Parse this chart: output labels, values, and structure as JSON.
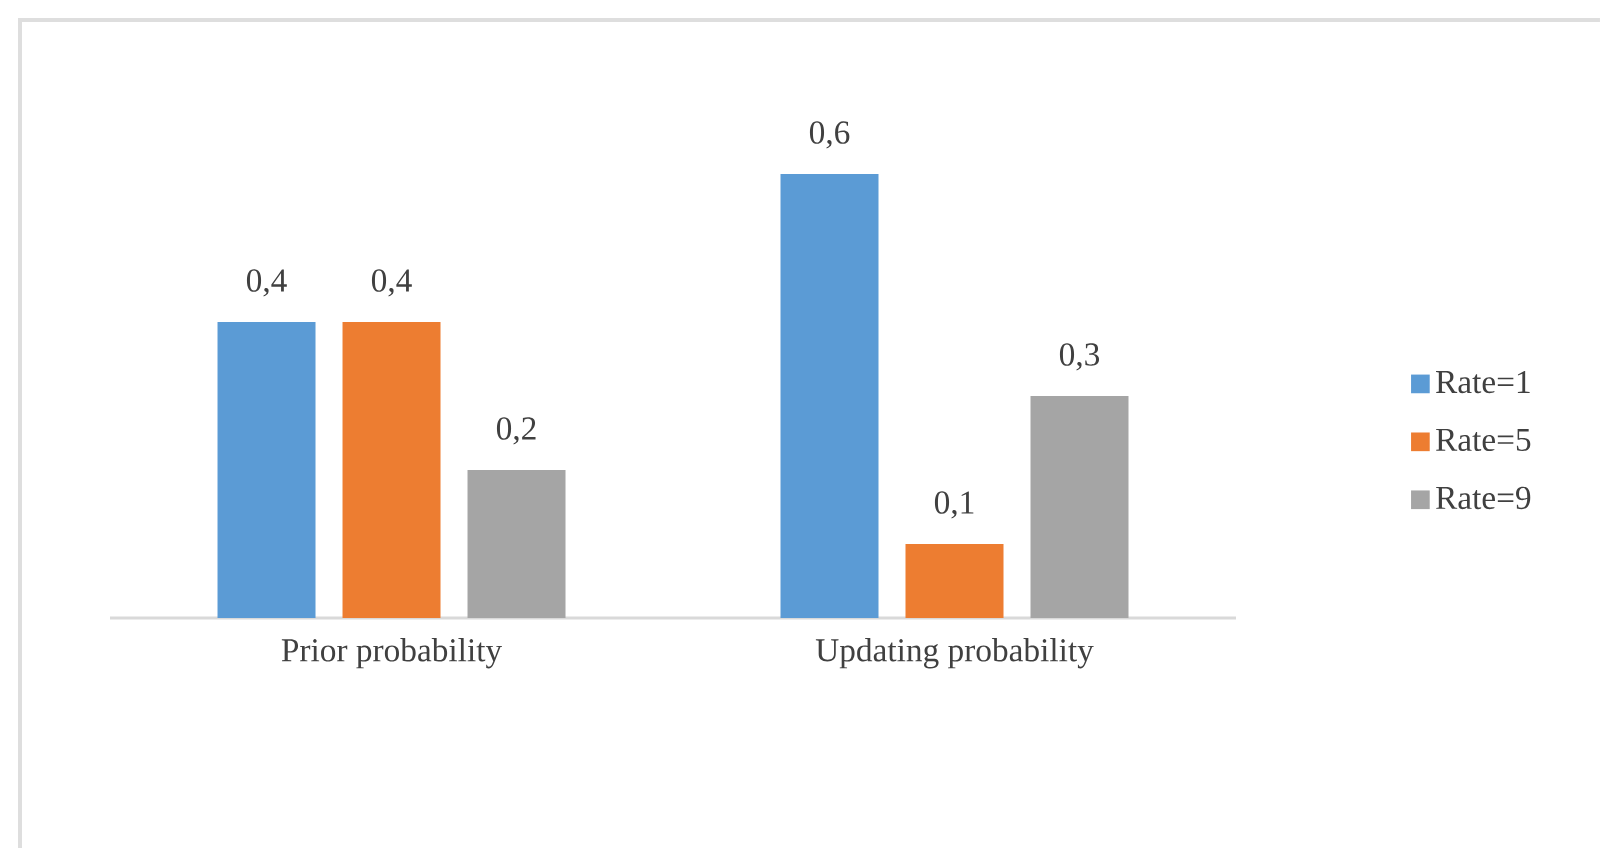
{
  "chart_data": {
    "type": "bar",
    "categories": [
      "Prior probability",
      "Updating probability"
    ],
    "series": [
      {
        "name": "Rate=1",
        "color": "#5b9bd5",
        "values": [
          0.4,
          0.6
        ],
        "value_labels": [
          "0,4",
          "0,6"
        ]
      },
      {
        "name": "Rate=5",
        "color": "#ed7d31",
        "values": [
          0.4,
          0.1
        ],
        "value_labels": [
          "0,4",
          "0,1"
        ]
      },
      {
        "name": "Rate=9",
        "color": "#a5a5a5",
        "values": [
          0.2,
          0.3
        ],
        "value_labels": [
          "0,2",
          "0,3"
        ]
      }
    ],
    "legend": "right"
  }
}
